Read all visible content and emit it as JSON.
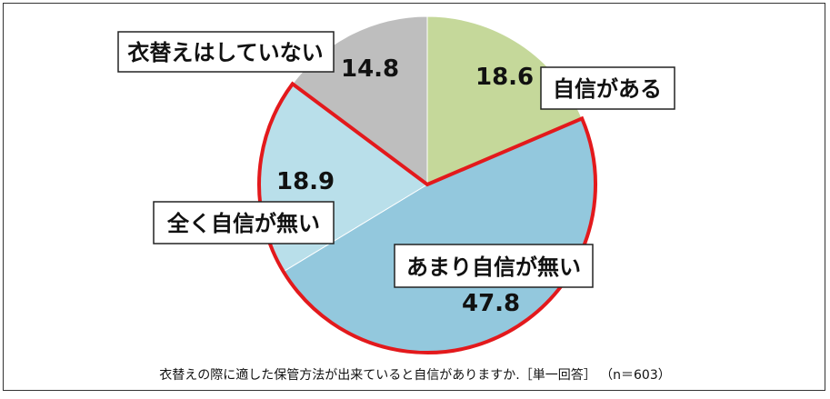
{
  "chart_data": {
    "type": "pie",
    "title": "",
    "caption": "衣替えの際に適した保管方法が出来ていると自信がありますか.［単一回答］ （n＝603）",
    "categories": [
      "自信がある",
      "あまり自信が無い",
      "全く自信が無い",
      "衣替えはしていない"
    ],
    "values": [
      18.6,
      47.8,
      18.9,
      14.8
    ],
    "value_labels": [
      "18.6",
      "47.8",
      "18.9",
      "14.8"
    ],
    "colors": [
      "#c5d89a",
      "#93c8dd",
      "#b9dfea",
      "#bebebe"
    ],
    "highlight_color": "#e3191c",
    "highlighted_group": [
      "あまり自信が無い",
      "全く自信が無い"
    ],
    "start": "top",
    "direction": "clockwise",
    "unit": "%"
  }
}
